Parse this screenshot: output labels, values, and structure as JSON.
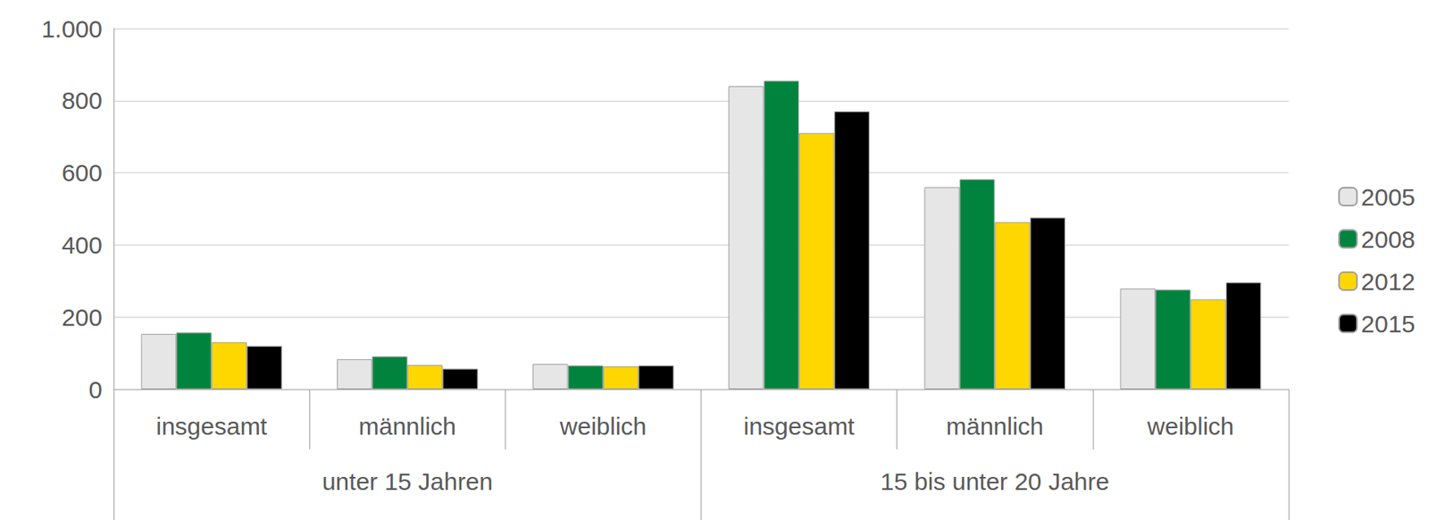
{
  "chart_data": {
    "type": "bar",
    "category_groups": [
      {
        "label": "unter 15 Jahren",
        "categories": [
          "insgesamt",
          "männlich",
          "weiblich"
        ]
      },
      {
        "label": "15 bis unter 20 Jahre",
        "categories": [
          "insgesamt",
          "männlich",
          "weiblich"
        ]
      }
    ],
    "series": [
      {
        "name": "2005",
        "color": "#e6e6e6",
        "values": [
          153,
          83,
          70,
          840,
          560,
          279
        ]
      },
      {
        "name": "2008",
        "color": "#00843d",
        "values": [
          157,
          91,
          66,
          855,
          582,
          276
        ]
      },
      {
        "name": "2012",
        "color": "#ffd700",
        "values": [
          130,
          67,
          63,
          710,
          463,
          249
        ]
      },
      {
        "name": "2015",
        "color": "#000000",
        "values": [
          120,
          57,
          66,
          770,
          476,
          296
        ]
      }
    ],
    "ylim": [
      0,
      1000
    ],
    "yticks": [
      0,
      200,
      400,
      600,
      800,
      {
        "value": 1000,
        "label": "1.000"
      }
    ],
    "grid": true,
    "legend": "right"
  }
}
